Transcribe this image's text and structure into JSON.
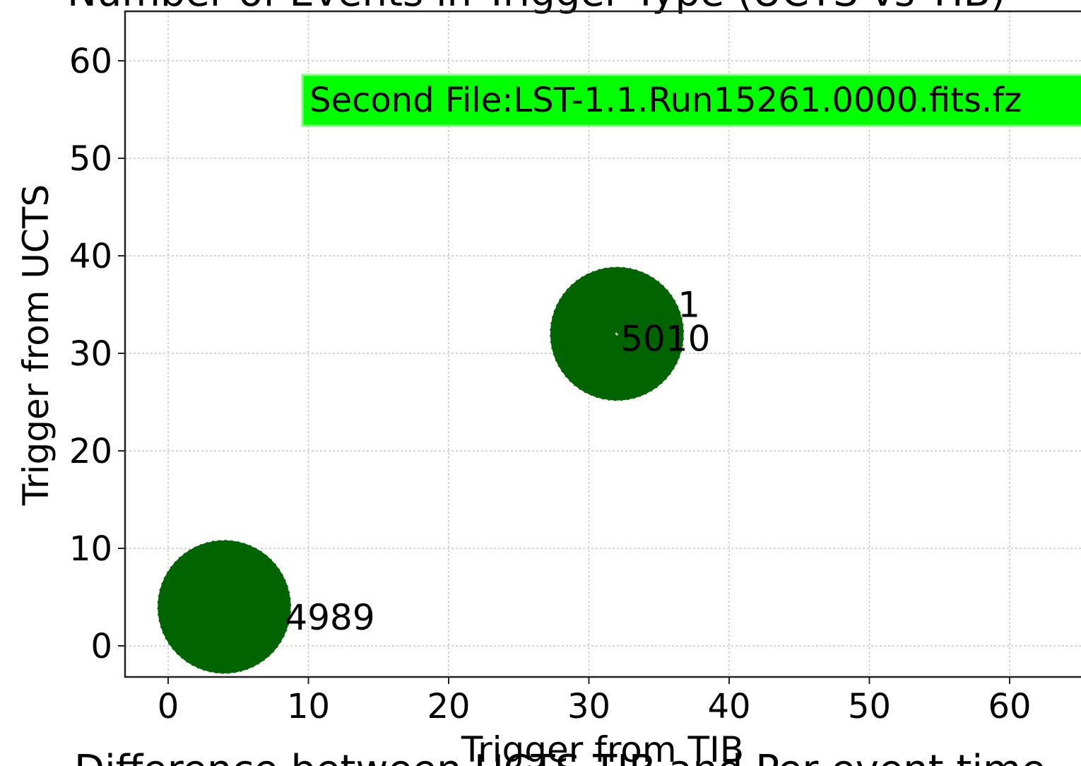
{
  "chart_data": {
    "type": "scatter",
    "title": "Number of Events in Trigger Type (UCTS vs TIB)",
    "xlabel": "Trigger from TIB",
    "ylabel": "Trigger from UCTS",
    "xlim": [
      -3,
      65
    ],
    "ylim": [
      -3,
      65
    ],
    "xticks": [
      0,
      10,
      20,
      30,
      40,
      50,
      60
    ],
    "yticks": [
      0,
      10,
      20,
      30,
      40,
      50,
      60
    ],
    "grid": true,
    "points": [
      {
        "x": 4,
        "y": 4,
        "count": 4989,
        "label": "4989"
      },
      {
        "x": 32,
        "y": 32,
        "count": 5010,
        "label": "5010"
      },
      {
        "x": 32,
        "y": 32,
        "count": 1,
        "label": "1"
      }
    ],
    "annotation": "Second File:LST-1.1.Run15261.0000.fits.fz",
    "colors": {
      "marker": "#006400",
      "annotation_bg": "#00ff00"
    },
    "below_text": "Difference between UCTS TIB and Per event time"
  }
}
